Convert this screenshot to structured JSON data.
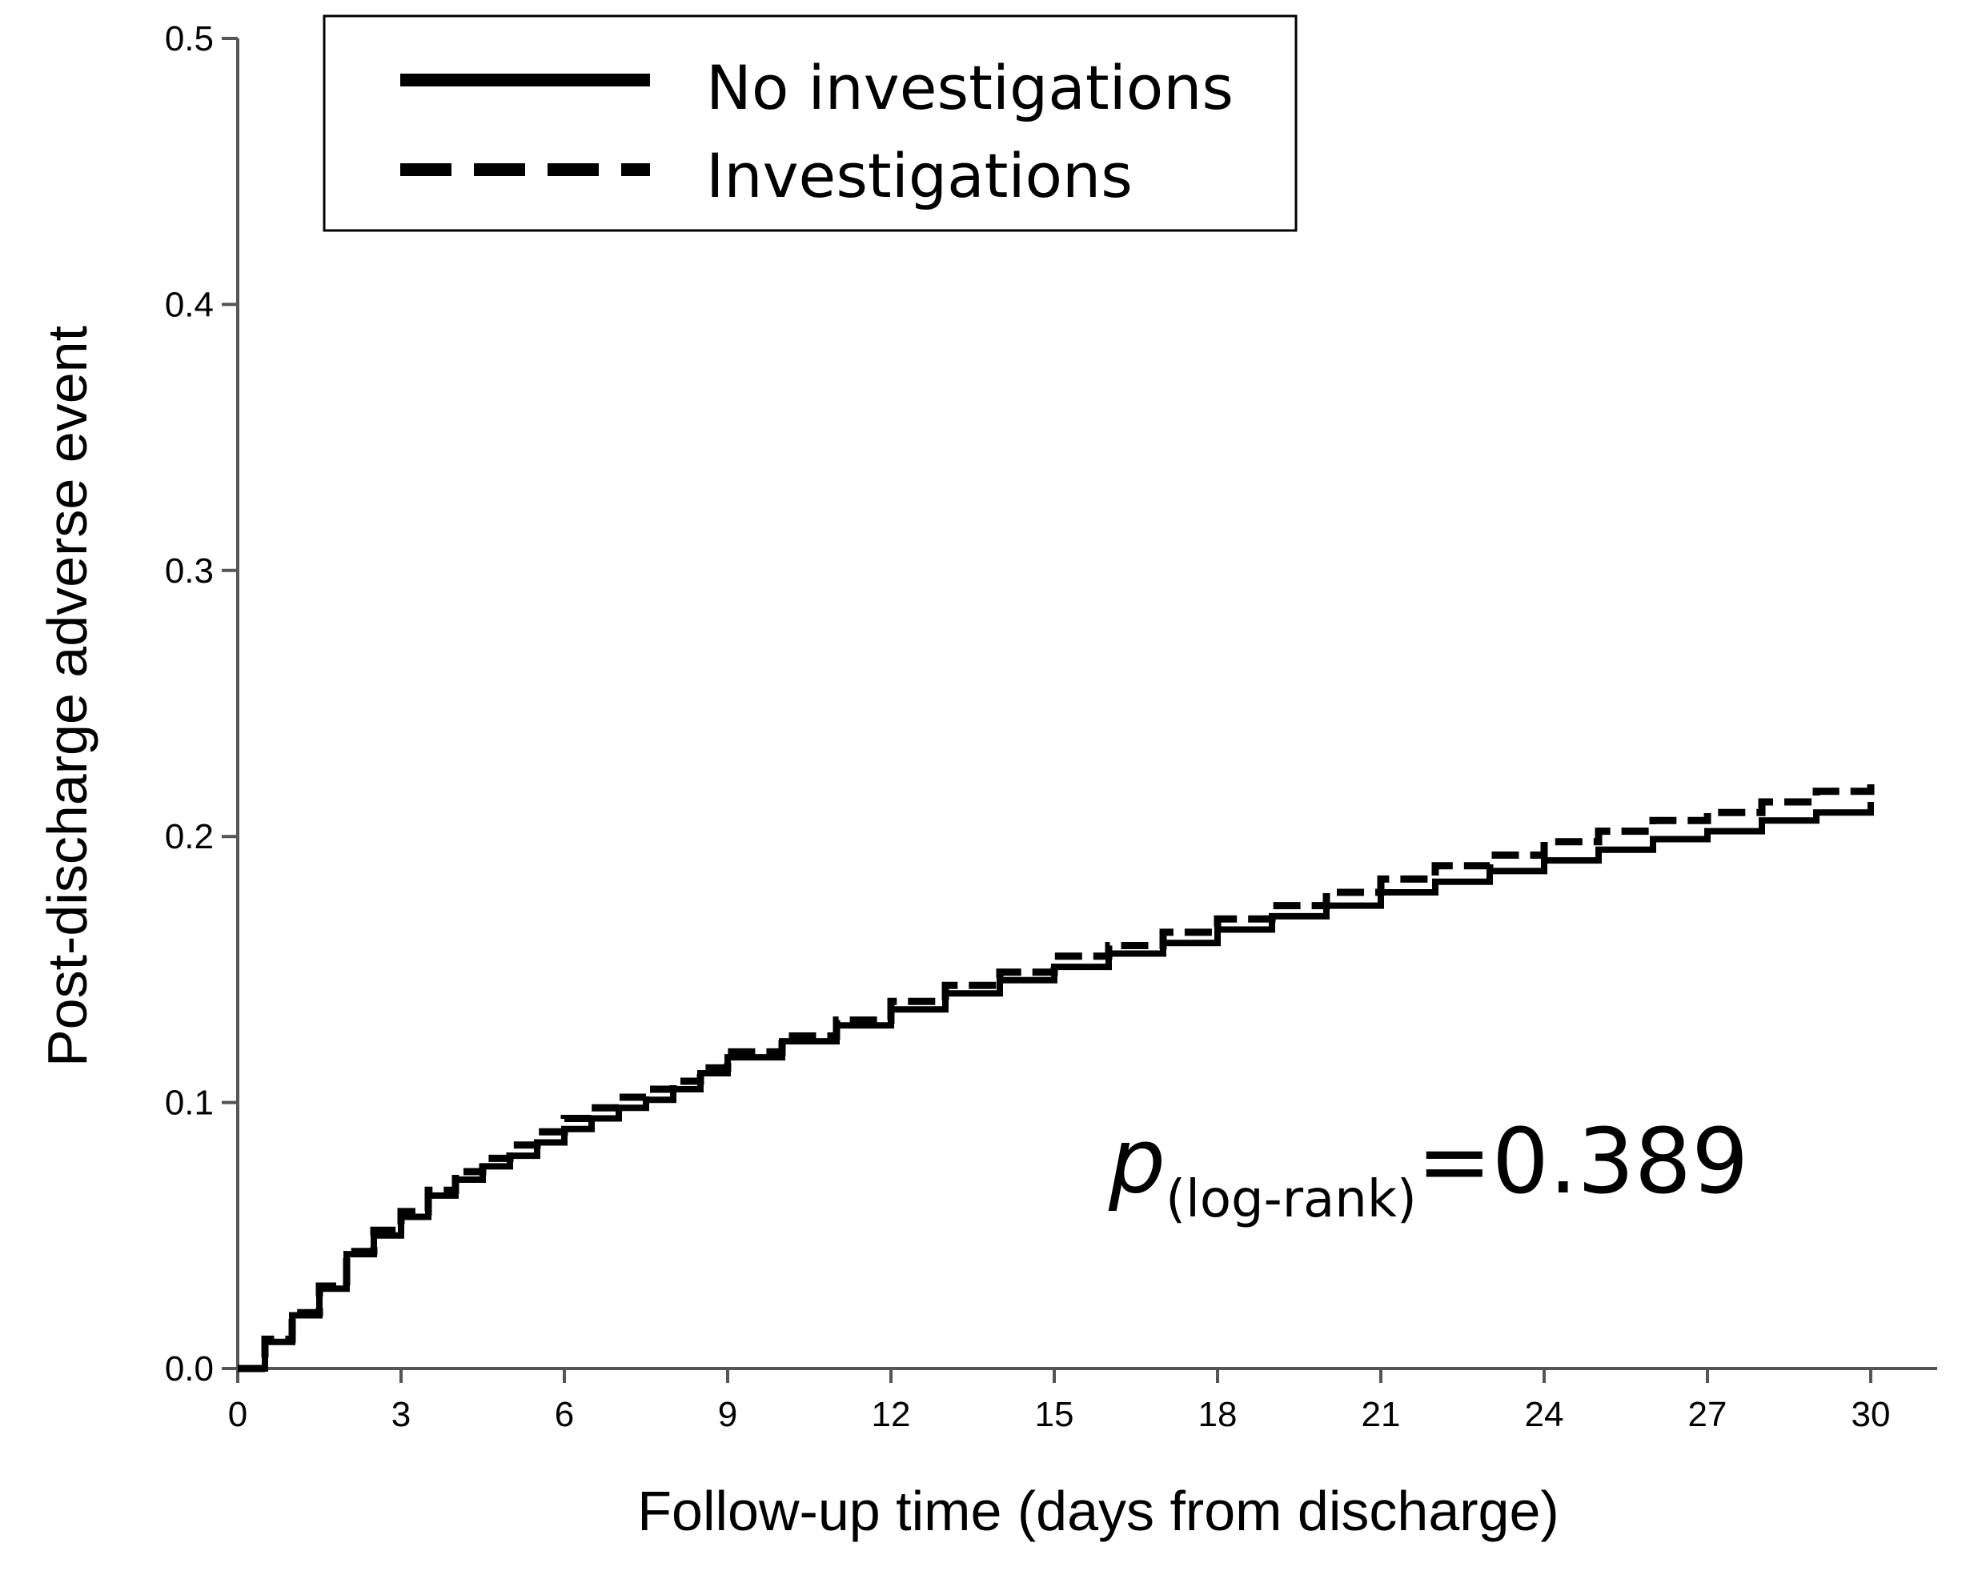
{
  "chart_data": {
    "type": "line",
    "title": "",
    "xlabel": "Follow-up time (days from discharge)",
    "ylabel": "Post-discharge adverse event",
    "xlim": [
      0,
      30
    ],
    "ylim": [
      0,
      0.5
    ],
    "x_ticks": [
      0,
      3,
      6,
      9,
      12,
      15,
      18,
      21,
      24,
      27,
      30
    ],
    "x_tick_labels": [
      "0",
      "3",
      "6",
      "9",
      "12",
      "15",
      "18",
      "21",
      "24",
      "27",
      "30"
    ],
    "y_ticks": [
      0,
      0.1,
      0.2,
      0.3,
      0.4,
      0.5
    ],
    "y_tick_labels": [
      "0.0",
      "0.1",
      "0.2",
      "0.3",
      "0.4",
      "0.5"
    ],
    "grid": false,
    "legend_position": "top-left",
    "series": [
      {
        "name": "No investigations",
        "line_style": "solid",
        "color": "#000000",
        "x": [
          0,
          0.5,
          1,
          1.5,
          2,
          2.5,
          3,
          3.5,
          4,
          4.5,
          5,
          5.5,
          6,
          6.5,
          7,
          7.5,
          8,
          8.5,
          9,
          10,
          11,
          12,
          13,
          14,
          15,
          16,
          17,
          18,
          19,
          20,
          21,
          22,
          23,
          24,
          25,
          26,
          27,
          28,
          29,
          30
        ],
        "y": [
          0,
          0.01,
          0.02,
          0.03,
          0.043,
          0.05,
          0.057,
          0.065,
          0.071,
          0.076,
          0.08,
          0.085,
          0.09,
          0.094,
          0.098,
          0.101,
          0.105,
          0.111,
          0.117,
          0.123,
          0.129,
          0.135,
          0.141,
          0.146,
          0.151,
          0.156,
          0.16,
          0.165,
          0.17,
          0.174,
          0.179,
          0.183,
          0.187,
          0.191,
          0.195,
          0.199,
          0.202,
          0.206,
          0.209,
          0.213
        ]
      },
      {
        "name": "Investigations",
        "line_style": "dashed",
        "color": "#000000",
        "x": [
          0,
          0.5,
          1,
          1.5,
          2,
          2.5,
          3,
          3.5,
          4,
          4.5,
          5,
          5.5,
          6,
          6.5,
          7,
          7.5,
          8,
          8.5,
          9,
          10,
          11,
          12,
          13,
          14,
          15,
          16,
          17,
          18,
          19,
          20,
          21,
          22,
          23,
          24,
          25,
          26,
          27,
          28,
          29,
          30
        ],
        "y": [
          0,
          0.011,
          0.021,
          0.031,
          0.044,
          0.052,
          0.059,
          0.067,
          0.074,
          0.079,
          0.084,
          0.089,
          0.094,
          0.098,
          0.102,
          0.105,
          0.108,
          0.113,
          0.119,
          0.125,
          0.131,
          0.138,
          0.144,
          0.149,
          0.155,
          0.159,
          0.164,
          0.169,
          0.174,
          0.179,
          0.184,
          0.189,
          0.193,
          0.198,
          0.202,
          0.206,
          0.209,
          0.213,
          0.217,
          0.221
        ]
      }
    ],
    "annotations": {
      "p_symbol": "p",
      "p_subscript": "(log-rank)",
      "p_value_text": "=0.389"
    }
  }
}
